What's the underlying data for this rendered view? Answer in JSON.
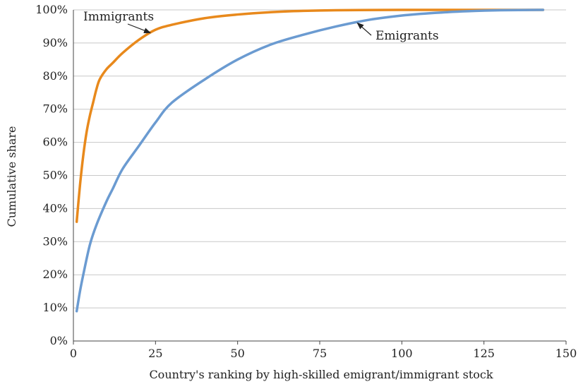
{
  "chart_data": {
    "type": "line",
    "xlabel": "Country's ranking by high-skilled emigrant/immigrant stock",
    "ylabel": "Cumulative share",
    "xlim": [
      0,
      150
    ],
    "ylim": [
      0,
      100
    ],
    "xticks": [
      0,
      25,
      50,
      75,
      100,
      125,
      150
    ],
    "yticks": [
      0,
      10,
      20,
      30,
      40,
      50,
      60,
      70,
      80,
      90,
      100
    ],
    "ytick_labels": [
      "0%",
      "10%",
      "20%",
      "30%",
      "40%",
      "50%",
      "60%",
      "70%",
      "80%",
      "90%",
      "100%"
    ],
    "grid": "horizontal",
    "legend": "none",
    "series": [
      {
        "name": "Immigrants",
        "color": "#e8891c",
        "x": [
          1,
          2,
          3,
          4,
          5,
          6,
          7,
          8,
          10,
          12,
          15,
          20,
          25,
          30,
          40,
          50,
          60,
          70,
          80,
          100,
          120,
          143
        ],
        "y": [
          36,
          47,
          56,
          63,
          68,
          72,
          76,
          79,
          82,
          84,
          87,
          91,
          94,
          95.5,
          97.5,
          98.6,
          99.3,
          99.7,
          99.9,
          100,
          100,
          100
        ]
      },
      {
        "name": "Emigrants",
        "color": "#6b9bd1",
        "x": [
          1,
          2,
          3,
          5,
          7,
          10,
          12,
          15,
          20,
          25,
          30,
          40,
          50,
          60,
          70,
          80,
          90,
          100,
          110,
          120,
          130,
          143
        ],
        "y": [
          9,
          15,
          20,
          29,
          35,
          42,
          46,
          52,
          59,
          66,
          72,
          79,
          85,
          89.5,
          92.5,
          95,
          97,
          98.3,
          99.1,
          99.6,
          99.9,
          100
        ]
      }
    ],
    "annotations": [
      {
        "text": "Immigrants",
        "series": "Immigrants",
        "arrow_to": [
          23,
          93.5
        ]
      },
      {
        "text": "Emigrants",
        "series": "Emigrants",
        "arrow_to": [
          86,
          96.5
        ]
      }
    ]
  }
}
